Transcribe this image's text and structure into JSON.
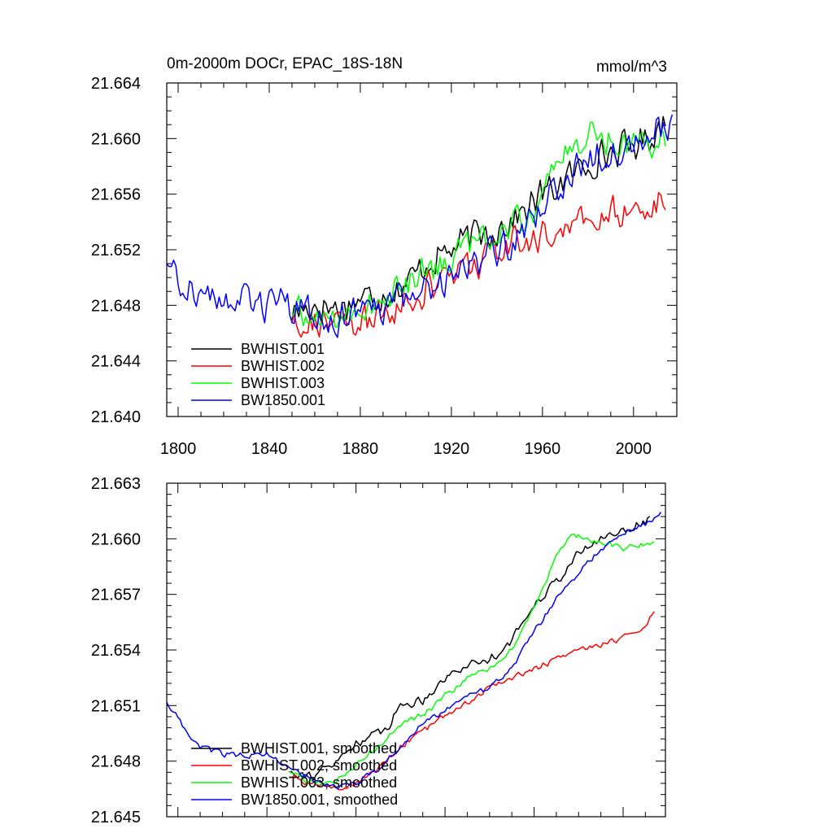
{
  "chart_data": [
    {
      "type": "line",
      "title": "0m-2000m DOCr, EPAC_18S-18N",
      "units": "mmol/m^3",
      "xlim": [
        1795,
        2019
      ],
      "ylim": [
        21.64,
        21.664
      ],
      "xticks": [
        1800,
        1840,
        1880,
        1920,
        1960,
        2000
      ],
      "xtick_labels": [
        "1800",
        "1840",
        "1880",
        "1920",
        "1960",
        "2000"
      ],
      "yticks": [
        21.64,
        21.644,
        21.648,
        21.652,
        21.656,
        21.66,
        21.664
      ],
      "ytick_labels": [
        "21.640",
        "21.644",
        "21.648",
        "21.652",
        "21.656",
        "21.660",
        "21.664"
      ],
      "legend_position": "bottom-left",
      "series": [
        {
          "name": "BWHIST.001",
          "color": "#000000",
          "x": [
            1850,
            1860,
            1870,
            1880,
            1890,
            1900,
            1910,
            1920,
            1930,
            1940,
            1950,
            1960,
            1970,
            1980,
            1990,
            2000,
            2010,
            2014
          ],
          "y": [
            21.6475,
            21.648,
            21.6478,
            21.6485,
            21.6488,
            21.6495,
            21.6512,
            21.652,
            21.653,
            21.6535,
            21.6545,
            21.656,
            21.657,
            21.6583,
            21.659,
            21.6595,
            21.6605,
            21.6615
          ],
          "noise": 0.0015
        },
        {
          "name": "BWHIST.002",
          "color": "#ff0000",
          "x": [
            1850,
            1860,
            1870,
            1880,
            1890,
            1900,
            1910,
            1920,
            1930,
            1940,
            1950,
            1960,
            1970,
            1980,
            1990,
            2000,
            2010,
            2014
          ],
          "y": [
            21.6472,
            21.6468,
            21.6465,
            21.6466,
            21.6472,
            21.6482,
            21.6492,
            21.6502,
            21.651,
            21.6518,
            21.6525,
            21.653,
            21.6535,
            21.654,
            21.6545,
            21.6548,
            21.6555,
            21.656
          ],
          "noise": 0.0015
        },
        {
          "name": "BWHIST.003",
          "color": "#00ff00",
          "x": [
            1850,
            1860,
            1870,
            1880,
            1890,
            1900,
            1910,
            1920,
            1930,
            1940,
            1950,
            1960,
            1970,
            1980,
            1990,
            2000,
            2010,
            2014
          ],
          "y": [
            21.6475,
            21.647,
            21.6472,
            21.6478,
            21.6482,
            21.6495,
            21.6505,
            21.6515,
            21.6525,
            21.6532,
            21.654,
            21.656,
            21.659,
            21.6602,
            21.66,
            21.6598,
            21.66,
            21.6602
          ],
          "noise": 0.0015
        },
        {
          "name": "BW1850.001",
          "color": "#0000ff",
          "x": [
            1795,
            1800,
            1810,
            1820,
            1830,
            1840,
            1850,
            1860,
            1870,
            1880,
            1890,
            1900,
            1910,
            1920,
            1930,
            1940,
            1950,
            1960,
            1970,
            1980,
            1990,
            2000,
            2010,
            2017
          ],
          "y": [
            21.6512,
            21.65,
            21.6488,
            21.6485,
            21.6482,
            21.6482,
            21.6478,
            21.6472,
            21.647,
            21.6472,
            21.6478,
            21.6485,
            21.6492,
            21.6502,
            21.651,
            21.652,
            21.653,
            21.655,
            21.6568,
            21.6585,
            21.6592,
            21.6598,
            21.6606,
            21.6615
          ],
          "noise": 0.0015
        }
      ]
    },
    {
      "type": "line",
      "title": "",
      "xlim": [
        1795,
        2019
      ],
      "ylim": [
        21.645,
        21.663
      ],
      "xticks": [
        1800,
        1840,
        1880,
        1920,
        1960,
        2000
      ],
      "yticks": [
        21.645,
        21.648,
        21.651,
        21.654,
        21.657,
        21.66,
        21.663
      ],
      "ytick_labels": [
        "21.645",
        "21.648",
        "21.651",
        "21.654",
        "21.657",
        "21.660",
        "21.663"
      ],
      "legend_position": "bottom-left",
      "series": [
        {
          "name": "BWHIST.001, smoothed",
          "color": "#000000",
          "x": [
            1850,
            1860,
            1870,
            1880,
            1890,
            1895,
            1900,
            1910,
            1920,
            1930,
            1940,
            1950,
            1960,
            1970,
            1980,
            1990,
            2000,
            2010,
            2012
          ],
          "y": [
            21.6475,
            21.6472,
            21.6478,
            21.649,
            21.6495,
            21.65,
            21.651,
            21.6513,
            21.6525,
            21.6532,
            21.6535,
            21.6545,
            21.6565,
            21.6577,
            21.6592,
            21.66,
            21.6605,
            21.6609,
            21.6612
          ],
          "noise": 0.0003
        },
        {
          "name": "BWHIST.002, smoothed",
          "color": "#ff0000",
          "x": [
            1850,
            1860,
            1870,
            1880,
            1890,
            1900,
            1910,
            1920,
            1930,
            1940,
            1950,
            1960,
            1970,
            1980,
            1990,
            2000,
            2010,
            2014
          ],
          "y": [
            21.6472,
            21.6468,
            21.6465,
            21.6468,
            21.6476,
            21.6488,
            21.6496,
            21.6505,
            21.6512,
            21.652,
            21.6525,
            21.653,
            21.6535,
            21.654,
            21.6543,
            21.6547,
            21.6553,
            21.6562
          ],
          "noise": 0.0002
        },
        {
          "name": "BWHIST.003, smoothed",
          "color": "#00ff00",
          "x": [
            1850,
            1860,
            1870,
            1880,
            1890,
            1900,
            1910,
            1920,
            1930,
            1940,
            1950,
            1960,
            1970,
            1975,
            1980,
            1990,
            2000,
            2010,
            2014
          ],
          "y": [
            21.6475,
            21.6468,
            21.6468,
            21.6478,
            21.6488,
            21.65,
            21.6505,
            21.6515,
            21.6525,
            21.653,
            21.654,
            21.6562,
            21.659,
            21.66,
            21.6602,
            21.6598,
            21.6595,
            21.6597,
            21.6599
          ],
          "noise": 0.0002
        },
        {
          "name": "BW1850.001, smoothed",
          "color": "#0000ff",
          "x": [
            1795,
            1800,
            1805,
            1810,
            1820,
            1830,
            1840,
            1850,
            1860,
            1870,
            1880,
            1890,
            1900,
            1910,
            1920,
            1930,
            1940,
            1950,
            1960,
            1970,
            1980,
            1990,
            2000,
            2010,
            2017
          ],
          "y": [
            21.6512,
            21.6503,
            21.6494,
            21.6488,
            21.6484,
            21.6483,
            21.6484,
            21.6476,
            21.647,
            21.6466,
            21.6468,
            21.6476,
            21.6488,
            21.65,
            21.6507,
            21.6515,
            21.652,
            21.653,
            21.655,
            21.6567,
            21.6582,
            21.6594,
            21.6603,
            21.6608,
            21.6615
          ],
          "noise": 0.0002
        }
      ]
    }
  ]
}
